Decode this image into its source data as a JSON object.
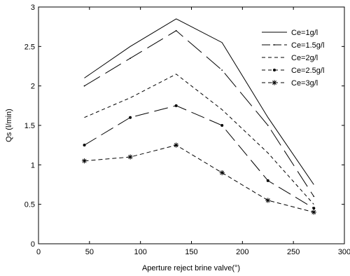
{
  "chart_data": {
    "type": "line",
    "title": "",
    "xlabel": "Aperture reject brine valve(°)",
    "ylabel": "Qs (l/min)",
    "xlim": [
      0,
      300
    ],
    "ylim": [
      0,
      3
    ],
    "xticks": [
      0,
      50,
      100,
      150,
      200,
      250,
      300
    ],
    "xtick_labels": [
      "0",
      "50",
      "100",
      "150",
      "200",
      "250",
      "300"
    ],
    "yticks": [
      0,
      0.5,
      1,
      1.5,
      2,
      2.5,
      3
    ],
    "ytick_labels": [
      "0",
      "0.5",
      "1",
      "1.5",
      "2",
      "2.5",
      "3"
    ],
    "grid": false,
    "legend_position": "top-right",
    "x": [
      45,
      90,
      135,
      180,
      225,
      270
    ],
    "series": [
      {
        "name": "Ce=1g/l",
        "values": [
          2.1,
          2.5,
          2.85,
          2.55,
          1.6,
          0.75
        ],
        "line_style": "solid",
        "marker": "none",
        "color": "#000000"
      },
      {
        "name": "Ce=1.5g/l",
        "values": [
          2.0,
          2.35,
          2.7,
          2.2,
          1.5,
          0.6
        ],
        "line_style": "long-dash",
        "marker": "point",
        "color": "#000000"
      },
      {
        "name": "Ce=2g/l",
        "values": [
          1.6,
          1.85,
          2.15,
          1.7,
          1.15,
          0.5
        ],
        "line_style": "short-dash",
        "marker": "none",
        "color": "#000000"
      },
      {
        "name": "Ce=2.5g/l",
        "values": [
          1.25,
          1.6,
          1.75,
          1.5,
          0.8,
          0.45
        ],
        "line_style": "dash-dot",
        "marker": "dot",
        "color": "#000000"
      },
      {
        "name": "Ce=3g/l",
        "values": [
          1.05,
          1.1,
          1.25,
          0.9,
          0.55,
          0.4
        ],
        "line_style": "dashed",
        "marker": "star",
        "color": "#000000"
      }
    ]
  }
}
